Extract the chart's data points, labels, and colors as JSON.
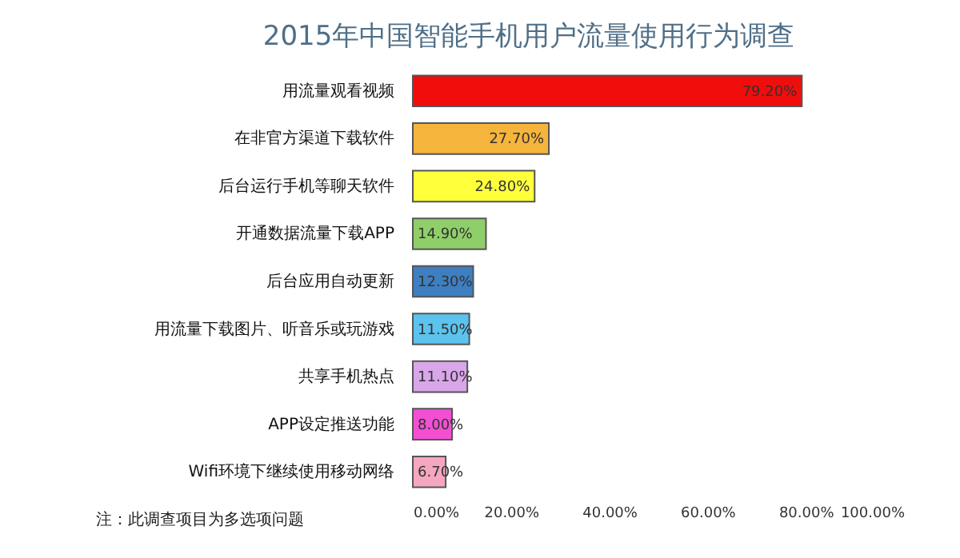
{
  "chart_data": {
    "type": "bar",
    "orientation": "horizontal",
    "title": "2015年中国智能手机用户流量使用行为调查",
    "categories": [
      "用流量观看视频",
      "在非官方渠道下载软件",
      "后台运行手机等聊天软件",
      "开通数据流量下载APP",
      "后台应用自动更新",
      "用流量下载图片、听音乐或玩游戏",
      "共享手机热点",
      "APP设定推送功能",
      "Wifi环境下继续使用移动网络"
    ],
    "values": [
      79.2,
      27.7,
      24.8,
      14.9,
      12.3,
      11.5,
      11.1,
      8.0,
      6.7
    ],
    "colors": [
      "#f20d0d",
      "#f5b43c",
      "#ffff3c",
      "#8fcf6a",
      "#3d7fc1",
      "#5bc3ee",
      "#d9a6ea",
      "#f24fd2",
      "#f6a7c0"
    ],
    "value_labels": [
      "79.20%",
      "27.70%",
      "24.80%",
      "14.90%",
      "12.30%",
      "11.50%",
      "11.10%",
      "8.00%",
      "6.70%"
    ],
    "xlim": [
      0,
      100
    ],
    "xticks": [
      {
        "value": 0,
        "label": "0.00%"
      },
      {
        "value": 20,
        "label": "20.00%"
      },
      {
        "value": 40,
        "label": "40.00%"
      },
      {
        "value": 60,
        "label": "60.00%"
      },
      {
        "value": 80,
        "label": "80.00%"
      },
      {
        "value": 100,
        "label": "100.00%"
      }
    ],
    "annotations": [
      "注：此调查项目为多选项问题"
    ],
    "grid": false
  }
}
